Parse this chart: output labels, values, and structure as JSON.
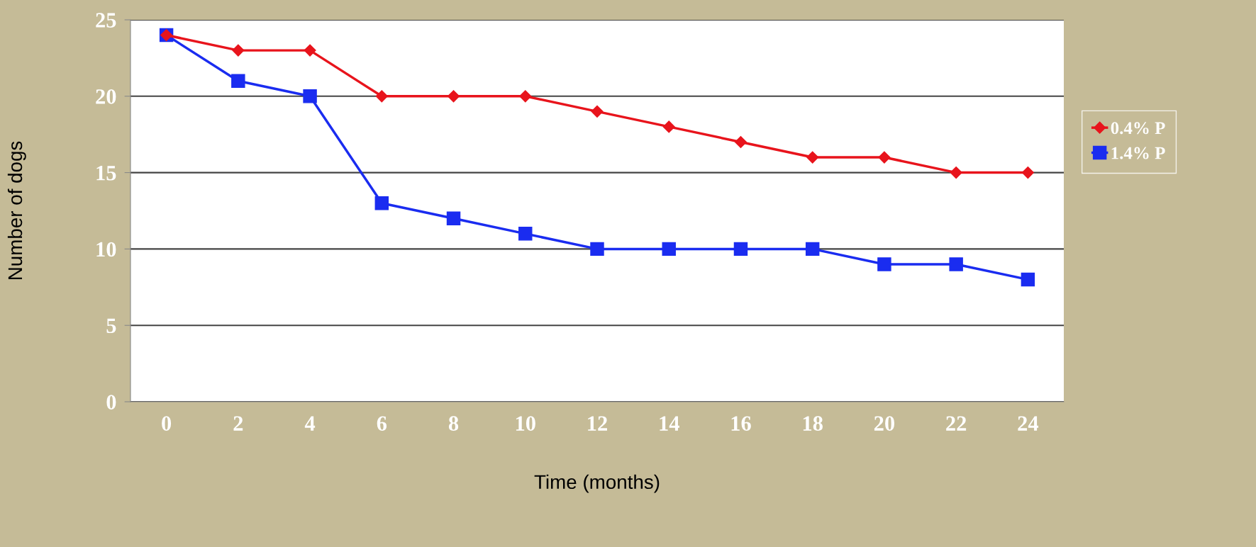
{
  "chart_data": {
    "type": "line",
    "xlabel": "Time (months)",
    "ylabel": "Number of dogs",
    "categories": [
      "0",
      "2",
      "4",
      "6",
      "8",
      "10",
      "12",
      "14",
      "16",
      "18",
      "20",
      "22",
      "24"
    ],
    "series": [
      {
        "name": "0.4% P",
        "color": "#e8141c",
        "marker": "diamond",
        "values": [
          24,
          23,
          23,
          20,
          20,
          20,
          19,
          18,
          17,
          16,
          16,
          15,
          15
        ]
      },
      {
        "name": "1.4% P",
        "color": "#1a2cf0",
        "marker": "square",
        "values": [
          24,
          21,
          20,
          13,
          12,
          11,
          10,
          10,
          10,
          10,
          9,
          9,
          8
        ]
      }
    ],
    "ylim": [
      0,
      25
    ],
    "yticks": [
      0,
      5,
      10,
      15,
      20,
      25
    ],
    "grid": "y",
    "legend": "right",
    "line_style": "solid"
  }
}
